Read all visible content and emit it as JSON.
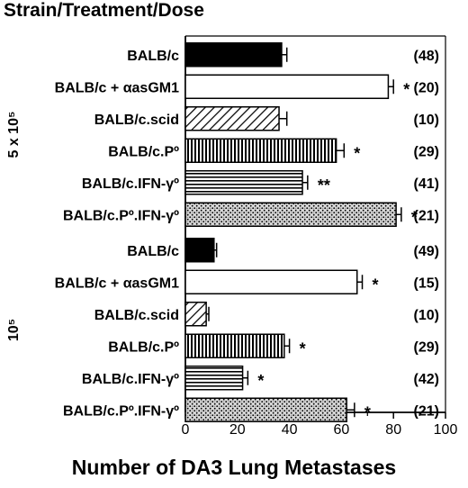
{
  "header": {
    "title": "Strain/Treatment/Dose"
  },
  "chart_data": {
    "type": "bar",
    "orientation": "horizontal",
    "xlabel": "Number of DA3 Lung Metastases",
    "xlim": [
      0,
      100
    ],
    "xticks": [
      "0",
      "20",
      "40",
      "60",
      "80",
      "100"
    ],
    "groups": [
      {
        "label": "5 x 10⁵",
        "rows": [
          {
            "category": "BALB/c",
            "value": 37,
            "error": 2,
            "significance": "",
            "n": "(48)",
            "pattern": "solid"
          },
          {
            "category": "BALB/c + αasGM1",
            "value": 78,
            "error": 2,
            "significance": "*",
            "n": "(20)",
            "pattern": "white"
          },
          {
            "category": "BALB/c.scid",
            "value": 36,
            "error": 3,
            "significance": "",
            "n": "(10)",
            "pattern": "diagonal"
          },
          {
            "category": "BALB/c.Pº",
            "value": 58,
            "error": 3,
            "significance": "*",
            "n": "(29)",
            "pattern": "vertical"
          },
          {
            "category": "BALB/c.IFN-γº",
            "value": 45,
            "error": 2,
            "significance": "**",
            "n": "(41)",
            "pattern": "horizontal"
          },
          {
            "category": "BALB/c.Pº.IFN-γº",
            "value": 81,
            "error": 2,
            "significance": "*",
            "n": "(21)",
            "pattern": "dots"
          }
        ]
      },
      {
        "label": "10⁵",
        "rows": [
          {
            "category": "BALB/c",
            "value": 11,
            "error": 1,
            "significance": "",
            "n": "(49)",
            "pattern": "solid"
          },
          {
            "category": "BALB/c + αasGM1",
            "value": 66,
            "error": 2,
            "significance": "*",
            "n": "(15)",
            "pattern": "white"
          },
          {
            "category": "BALB/c.scid",
            "value": 8,
            "error": 1,
            "significance": "",
            "n": "(10)",
            "pattern": "diagonal"
          },
          {
            "category": "BALB/c.Pº",
            "value": 38,
            "error": 2,
            "significance": "*",
            "n": "(29)",
            "pattern": "vertical"
          },
          {
            "category": "BALB/c.IFN-γº",
            "value": 22,
            "error": 2,
            "significance": "*",
            "n": "(42)",
            "pattern": "horizontal"
          },
          {
            "category": "BALB/c.Pº.IFN-γº",
            "value": 62,
            "error": 3,
            "significance": "*",
            "n": "(21)",
            "pattern": "dots"
          }
        ]
      }
    ]
  }
}
